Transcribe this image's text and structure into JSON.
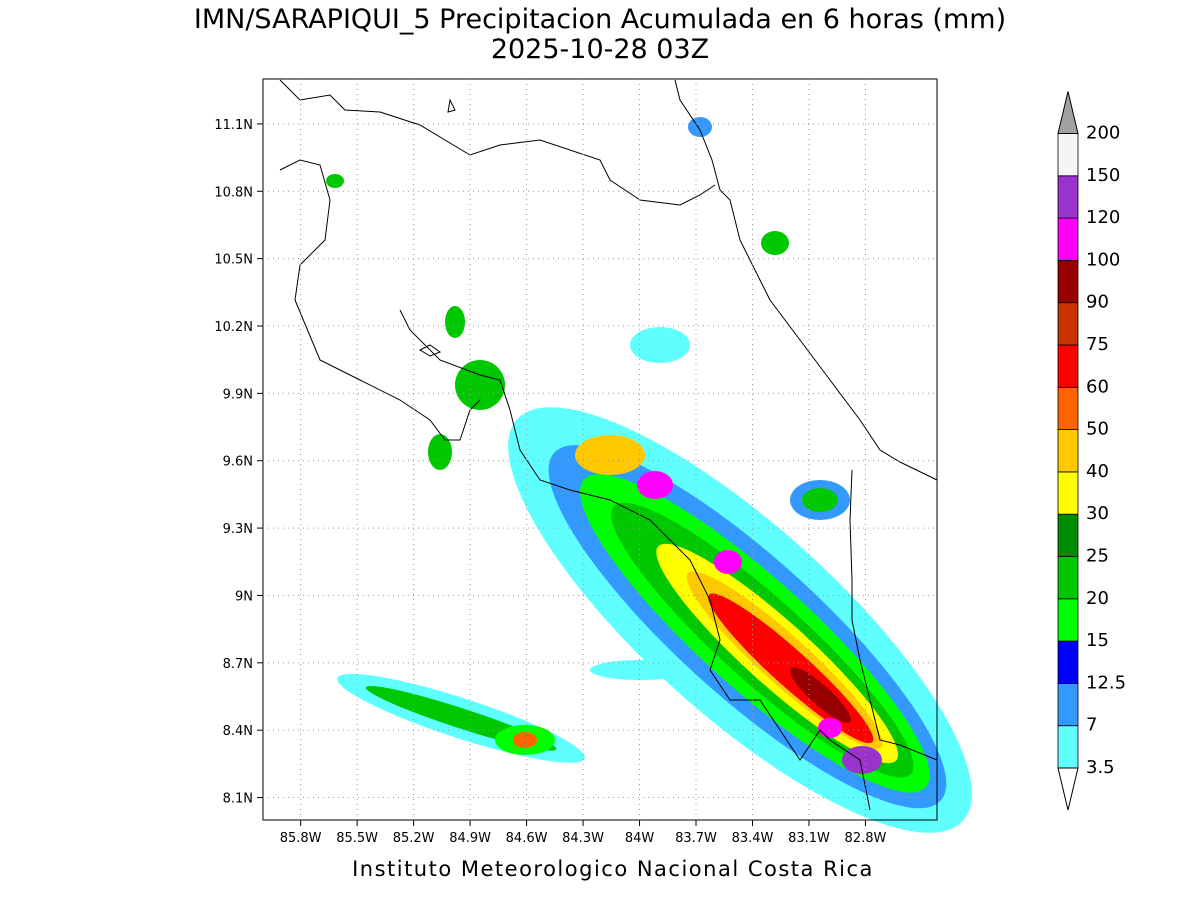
{
  "title": "IMN/SARAPIQUI_5 Precipitacion Acumulada en 6 horas (mm)",
  "subtitle": "2025-10-28 03Z",
  "footer": "Instituto Meteorologico Nacional Costa Rica",
  "map": {
    "xlim": [
      -86.0,
      -82.42
    ],
    "ylim": [
      8.0,
      11.3
    ],
    "grid": true,
    "xticks": [
      {
        "value": -85.8,
        "label": "85.8W"
      },
      {
        "value": -85.5,
        "label": "85.5W"
      },
      {
        "value": -85.2,
        "label": "85.2W"
      },
      {
        "value": -84.9,
        "label": "84.9W"
      },
      {
        "value": -84.6,
        "label": "84.6W"
      },
      {
        "value": -84.3,
        "label": "84.3W"
      },
      {
        "value": -84.0,
        "label": "84W"
      },
      {
        "value": -83.7,
        "label": "83.7W"
      },
      {
        "value": -83.4,
        "label": "83.4W"
      },
      {
        "value": -83.1,
        "label": "83.1W"
      },
      {
        "value": -82.8,
        "label": "82.8W"
      }
    ],
    "yticks": [
      {
        "value": 8.1,
        "label": "8.1N"
      },
      {
        "value": 8.4,
        "label": "8.4N"
      },
      {
        "value": 8.7,
        "label": "8.7N"
      },
      {
        "value": 9.0,
        "label": "9N"
      },
      {
        "value": 9.3,
        "label": "9.3N"
      },
      {
        "value": 9.6,
        "label": "9.6N"
      },
      {
        "value": 9.9,
        "label": "9.9N"
      },
      {
        "value": 10.2,
        "label": "10.2N"
      },
      {
        "value": 10.5,
        "label": "10.5N"
      },
      {
        "value": 10.8,
        "label": "10.8N"
      },
      {
        "value": 11.1,
        "label": "11.1N"
      }
    ]
  },
  "colorbar": {
    "levels": [
      3.5,
      7,
      12.5,
      15,
      20,
      25,
      30,
      40,
      50,
      60,
      75,
      90,
      100,
      120,
      150,
      200
    ],
    "colors": [
      "#5fffff",
      "#3399ff",
      "#0000ff",
      "#00ff00",
      "#00c800",
      "#008c00",
      "#ffff00",
      "#ffc800",
      "#ff6400",
      "#ff0000",
      "#c83200",
      "#960000",
      "#ff00ff",
      "#9933cc",
      "#f5f5f5"
    ],
    "under_color": "#ffffff",
    "over_color": "#a0a0a0"
  }
}
